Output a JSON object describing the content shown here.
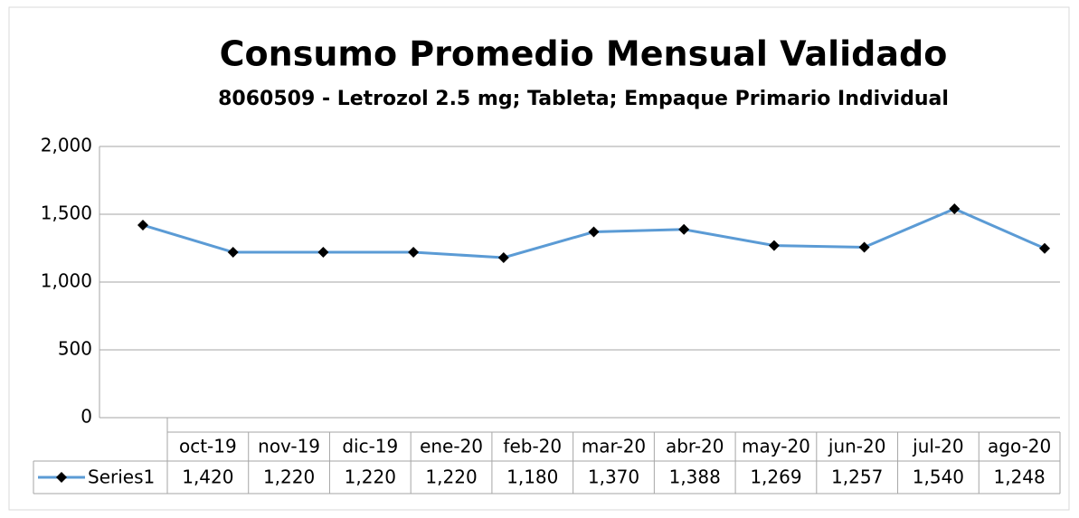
{
  "chart_data": {
    "type": "line",
    "title": "Consumo Promedio Mensual Validado",
    "subtitle": "8060509 - Letrozol 2.5 mg; Tableta; Empaque Primario Individual",
    "categories": [
      "oct-19",
      "nov-19",
      "dic-19",
      "ene-20",
      "feb-20",
      "mar-20",
      "abr-20",
      "may-20",
      "jun-20",
      "jul-20",
      "ago-20"
    ],
    "series": [
      {
        "name": "Series1",
        "color": "#5b9bd5",
        "values": [
          1420,
          1220,
          1220,
          1220,
          1180,
          1370,
          1388,
          1269,
          1257,
          1540,
          1248
        ],
        "value_labels": [
          "1,420",
          "1,220",
          "1,220",
          "1,220",
          "1,180",
          "1,370",
          "1,388",
          "1,269",
          "1,257",
          "1,540",
          "1,248"
        ]
      }
    ],
    "ylim": [
      0,
      2000
    ],
    "yticks": [
      0,
      500,
      {
        "value": 1000,
        "label": "1,000"
      },
      {
        "value": 1500,
        "label": "1,500"
      },
      {
        "value": 2000,
        "label": "2,000"
      }
    ],
    "grid": true
  }
}
